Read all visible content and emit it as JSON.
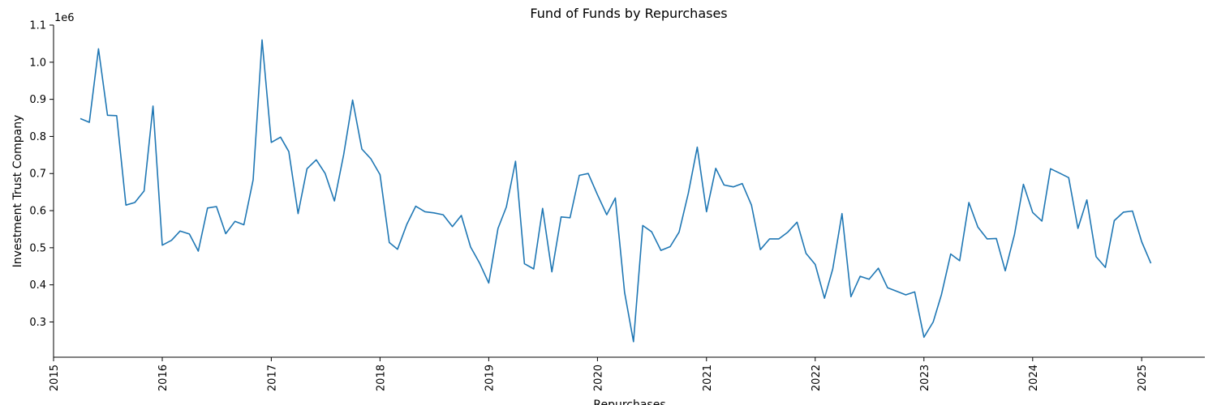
{
  "chart_data": {
    "type": "line",
    "title": "Fund of Funds by Repurchases",
    "xlabel": "Repurchases",
    "ylabel": "Investment Trust Company",
    "y_offset_label": "1e6",
    "y_scale": 1000000,
    "xlim": [
      "2015-01-01",
      "2025-08-01"
    ],
    "ylim": [
      205000,
      1100000
    ],
    "x_ticks": [
      "2015",
      "2016",
      "2017",
      "2018",
      "2019",
      "2020",
      "2021",
      "2022",
      "2023",
      "2024",
      "2025"
    ],
    "y_ticks": [
      "0.3",
      "0.4",
      "0.5",
      "0.6",
      "0.7",
      "0.8",
      "0.9",
      "1.0",
      "1.1"
    ],
    "grid": false,
    "line_color": "#1f77b4",
    "series": [
      {
        "x": [
          "2015-04",
          "2015-05",
          "2015-06",
          "2015-07",
          "2015-08",
          "2015-09",
          "2015-10",
          "2015-11",
          "2015-12",
          "2016-01",
          "2016-02",
          "2016-03",
          "2016-04",
          "2016-05",
          "2016-06",
          "2016-07",
          "2016-08",
          "2016-09",
          "2016-10",
          "2016-11",
          "2016-12",
          "2017-01",
          "2017-02",
          "2017-03",
          "2017-04",
          "2017-05",
          "2017-06",
          "2017-07",
          "2017-08",
          "2017-09",
          "2017-10",
          "2017-11",
          "2017-12",
          "2018-01",
          "2018-02",
          "2018-03",
          "2018-04",
          "2018-05",
          "2018-06",
          "2018-07",
          "2018-08",
          "2018-09",
          "2018-10",
          "2018-11",
          "2018-12",
          "2019-01",
          "2019-02",
          "2019-03",
          "2019-04",
          "2019-05",
          "2019-06",
          "2019-07",
          "2019-08",
          "2019-09",
          "2019-10",
          "2019-11",
          "2019-12",
          "2020-01",
          "2020-02",
          "2020-03",
          "2020-04",
          "2020-05",
          "2020-06",
          "2020-07",
          "2020-08",
          "2020-09",
          "2020-10",
          "2020-11",
          "2020-12",
          "2021-01",
          "2021-02",
          "2021-03",
          "2021-04",
          "2021-05",
          "2021-06",
          "2021-07",
          "2021-08",
          "2021-09",
          "2021-10",
          "2021-11",
          "2021-12",
          "2022-01",
          "2022-02",
          "2022-03",
          "2022-04",
          "2022-05",
          "2022-06",
          "2022-07",
          "2022-08",
          "2022-09",
          "2022-10",
          "2022-11",
          "2022-12",
          "2023-01",
          "2023-02",
          "2023-03",
          "2023-04",
          "2023-05",
          "2023-06",
          "2023-07",
          "2023-08",
          "2023-09",
          "2023-10",
          "2023-11",
          "2023-12",
          "2024-01",
          "2024-02",
          "2024-03",
          "2024-04",
          "2024-05",
          "2024-06",
          "2024-07",
          "2024-08",
          "2024-09",
          "2024-10",
          "2024-11",
          "2024-12",
          "2025-01",
          "2025-02"
        ],
        "values": [
          848000,
          838000,
          1036000,
          857000,
          856000,
          615000,
          622000,
          653000,
          882000,
          507000,
          520000,
          545000,
          537000,
          491000,
          607000,
          611000,
          538000,
          571000,
          562000,
          683000,
          1060000,
          784000,
          798000,
          759000,
          592000,
          713000,
          737000,
          700000,
          626000,
          751000,
          898000,
          766000,
          740000,
          697000,
          514000,
          496000,
          563000,
          612000,
          597000,
          594000,
          589000,
          557000,
          587000,
          502000,
          459000,
          405000,
          552000,
          610000,
          733000,
          457000,
          443000,
          606000,
          435000,
          583000,
          581000,
          695000,
          700000,
          643000,
          589000,
          634000,
          380000,
          247000,
          560000,
          543000,
          493000,
          503000,
          542000,
          647000,
          771000,
          597000,
          714000,
          669000,
          664000,
          673000,
          615000,
          495000,
          524000,
          524000,
          542000,
          569000,
          485000,
          455000,
          364000,
          443000,
          592000,
          368000,
          423000,
          415000,
          445000,
          392000,
          383000,
          373000,
          381000,
          259000,
          300000,
          374000,
          483000,
          465000,
          622000,
          556000,
          524000,
          525000,
          438000,
          536000,
          671000,
          595000,
          572000,
          713000,
          701000,
          689000,
          552000,
          629000,
          476000,
          447000,
          573000,
          596000,
          599000,
          516000,
          458000
        ]
      }
    ]
  }
}
